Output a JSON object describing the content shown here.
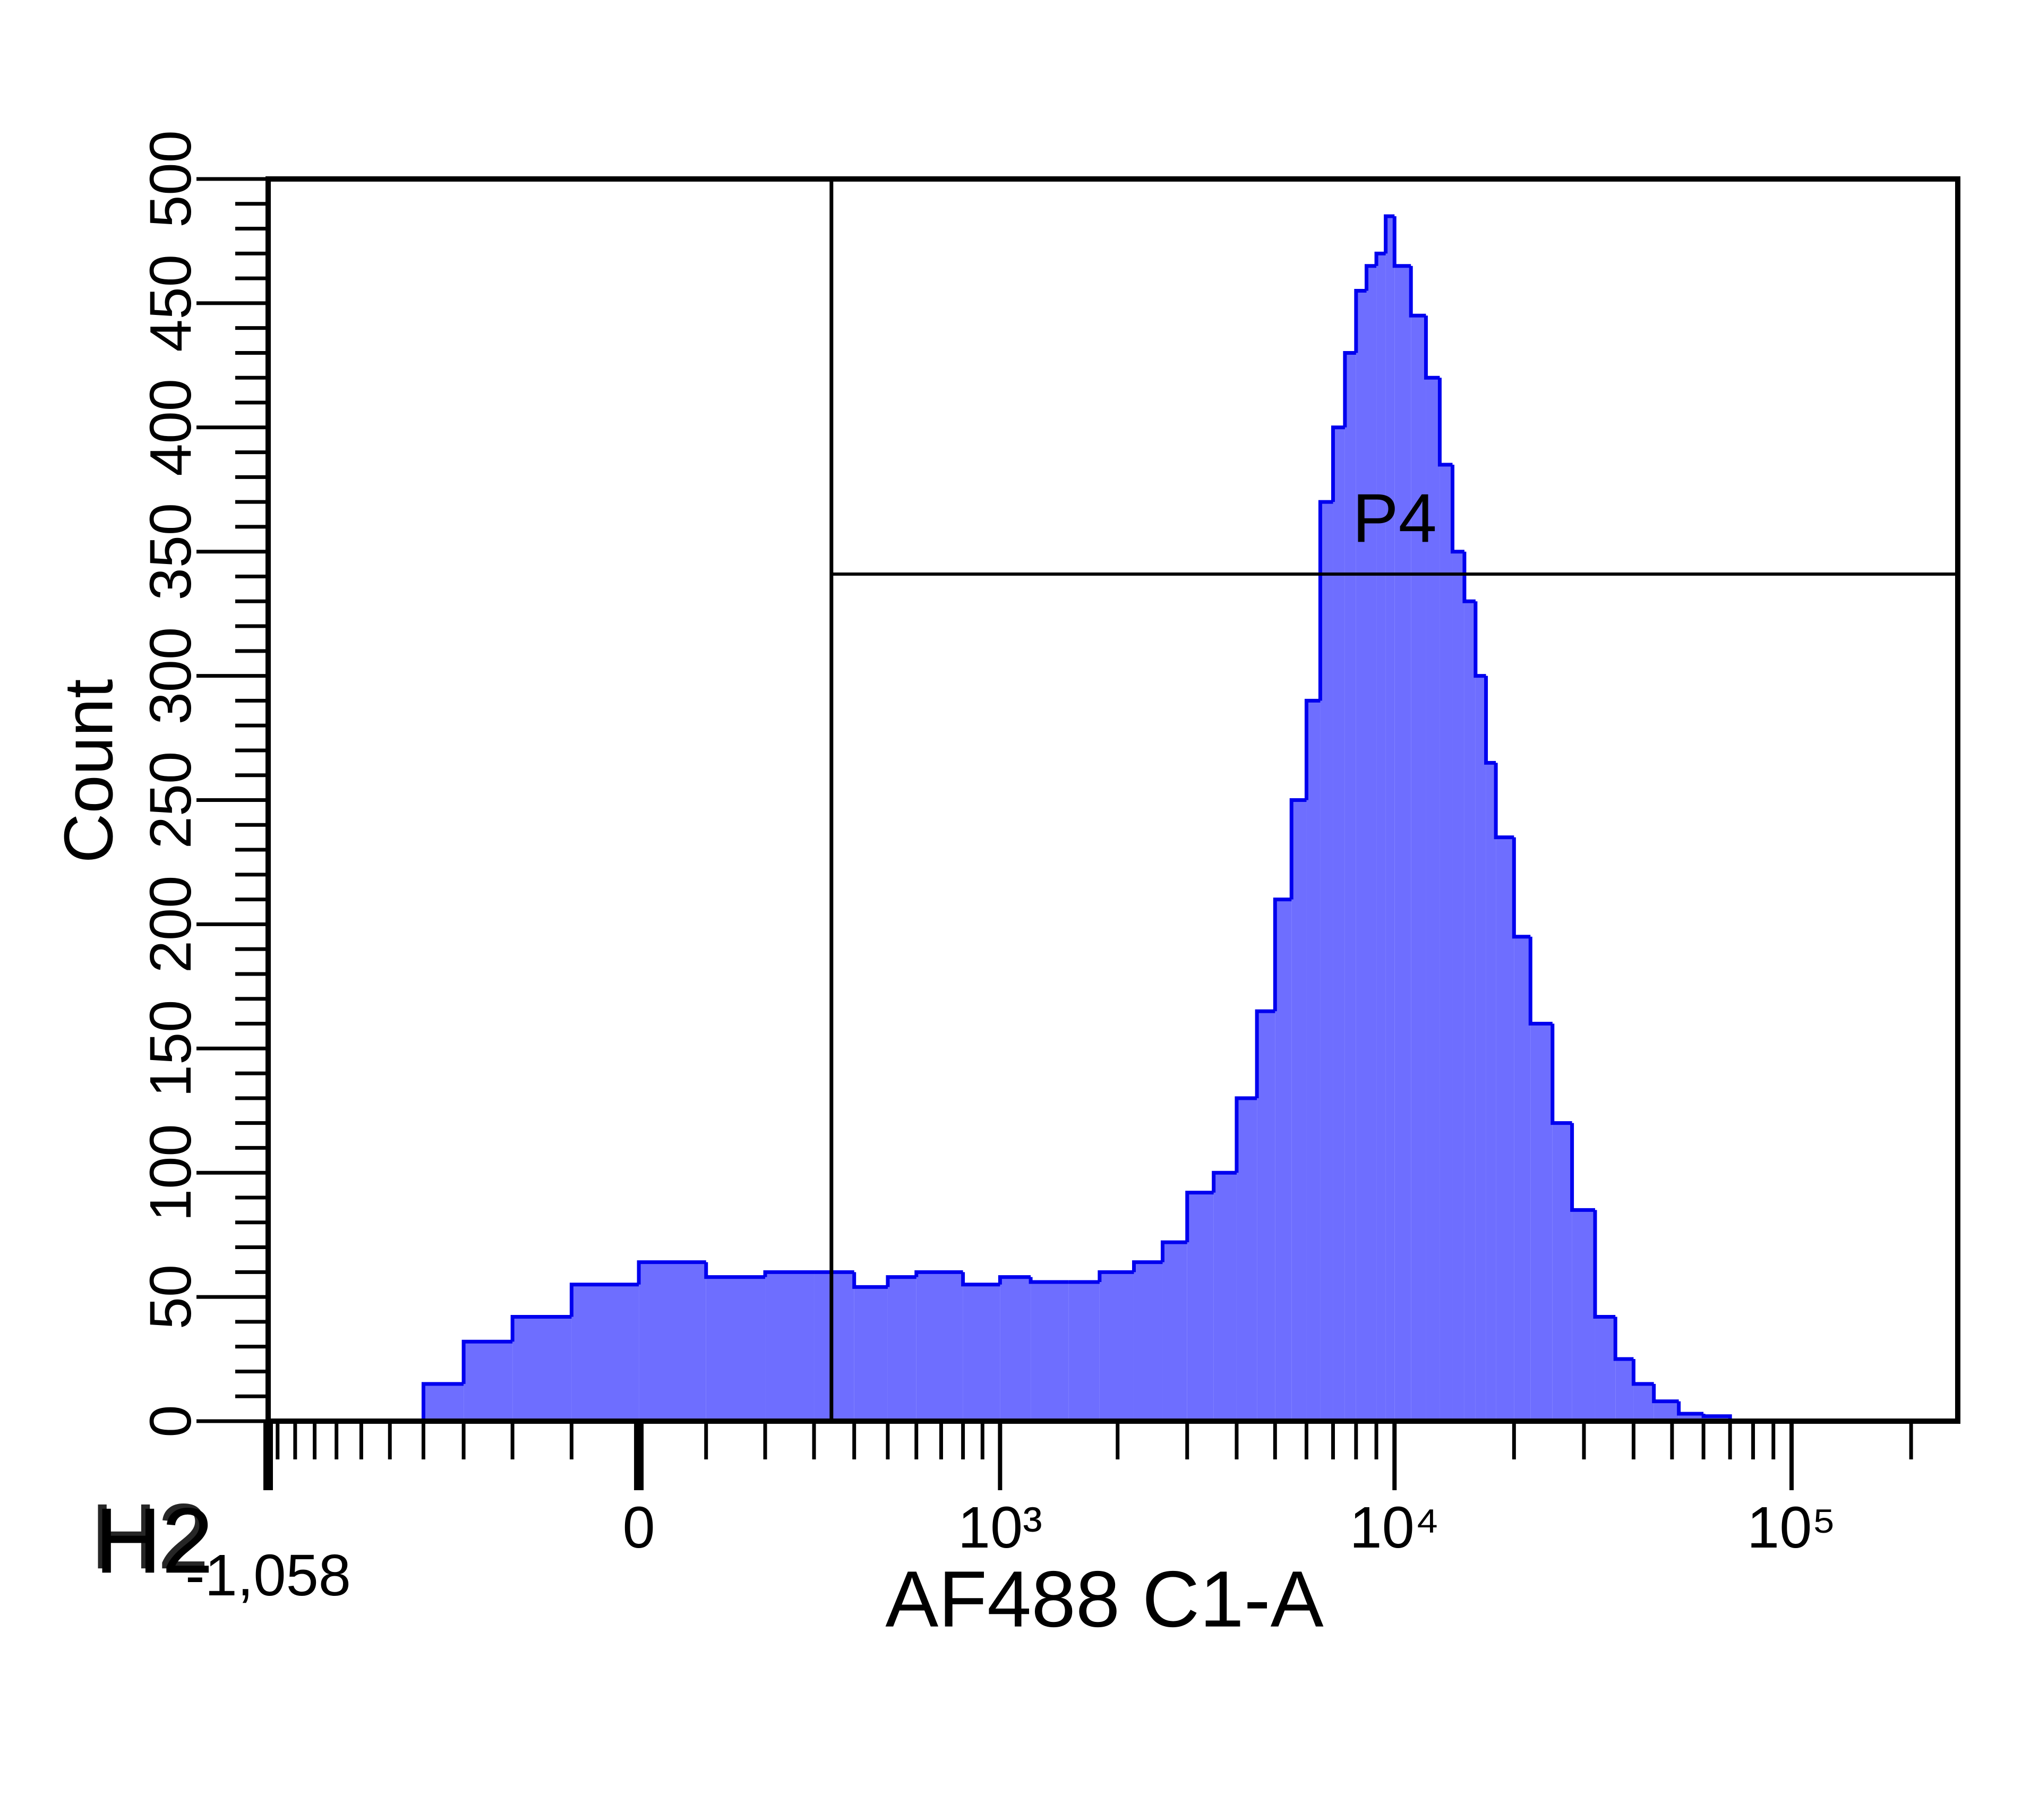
{
  "chart_data": {
    "type": "histogram",
    "plot_label": "H2",
    "xlabel": "AF488 C1-A",
    "ylabel": "Count",
    "xscale": "biexponential",
    "color": "#6e6eff",
    "edge_color": "#0000ee",
    "bins": [
      -400,
      -300,
      -200,
      -100,
      0,
      100,
      200,
      300,
      400,
      500,
      600,
      800,
      1000,
      1200,
      1500,
      1800,
      2200,
      2600,
      3000,
      3500,
      4000,
      4500,
      5000,
      5500,
      6000,
      6500,
      7000,
      7500,
      8000,
      8500,
      9000,
      9500,
      10000,
      11000,
      12000,
      13000,
      14000,
      15000,
      16000,
      17000,
      18000,
      20000,
      22000,
      25000,
      28000,
      32000,
      36000,
      40000,
      45000,
      52000,
      60000,
      70000
    ],
    "values": [
      15,
      32,
      42,
      55,
      64,
      58,
      60,
      60,
      54,
      58,
      60,
      55,
      58,
      56,
      56,
      60,
      64,
      72,
      92,
      100,
      130,
      165,
      210,
      250,
      290,
      370,
      400,
      430,
      455,
      465,
      470,
      485,
      465,
      445,
      420,
      385,
      350,
      330,
      300,
      265,
      235,
      195,
      160,
      120,
      85,
      42,
      25,
      15,
      8,
      3,
      2
    ],
    "xlim": [
      -1058,
      262144
    ],
    "xticks": [
      {
        "value": -1058,
        "label": "-1,058"
      },
      0,
      {
        "value": 1000,
        "label": "10³"
      },
      {
        "value": 10000,
        "label": "10⁴"
      },
      {
        "value": 100000,
        "label": "10⁵"
      }
    ],
    "xminorticks": [
      -1000,
      -900,
      -800,
      -700,
      -600,
      -500,
      -400,
      -300,
      -200,
      -100,
      100,
      200,
      300,
      400,
      500,
      600,
      700,
      800,
      900,
      2000,
      3000,
      4000,
      5000,
      6000,
      7000,
      8000,
      9000,
      20000,
      30000,
      40000,
      50000,
      60000,
      70000,
      80000,
      90000,
      200000
    ],
    "ylim": [
      0,
      500
    ],
    "yticks": [
      0,
      50,
      100,
      150,
      200,
      250,
      300,
      350,
      400,
      450,
      500
    ],
    "yminorticks": [
      10,
      20,
      30,
      40,
      60,
      70,
      80,
      90,
      110,
      120,
      130,
      140,
      160,
      170,
      180,
      190,
      210,
      220,
      230,
      240,
      260,
      270,
      280,
      290,
      310,
      320,
      330,
      340,
      360,
      370,
      380,
      390,
      410,
      420,
      430,
      440,
      460,
      470,
      480,
      490
    ],
    "gate": {
      "name": "P4",
      "range": [
        341,
        262144
      ]
    }
  }
}
